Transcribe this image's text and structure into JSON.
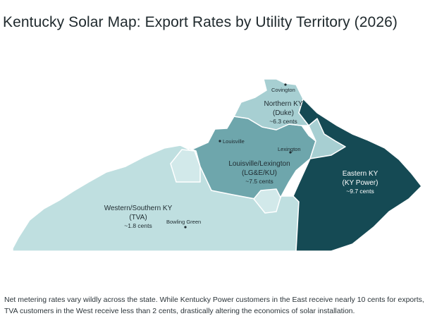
{
  "title": "Kentucky Solar Map: Export Rates by Utility Territory (2026)",
  "caption": "Net metering rates vary wildly across the state. While Kentucky Power customers in the East receive nearly 10 cents for exports, TVA customers in the West receive less than 2 cents, drastically altering the economics of solar installation.",
  "colors": {
    "western": "#bfdfe0",
    "louisville": "#6ea6ac",
    "northern": "#a7cfd2",
    "eastern": "#154a54",
    "light_patch": "#d2e9ea",
    "border": "#ffffff",
    "dark_text": "#1f2b30",
    "light_text": "#ffffff"
  },
  "regions": {
    "western": {
      "name": "Western/Southern KY",
      "utility": "(TVA)",
      "rate": "~1.8 cents"
    },
    "louisville": {
      "name": "Louisville/Lexington",
      "utility": "(LG&E/KU)",
      "rate": "~7.5 cents"
    },
    "northern": {
      "name": "Northern KY",
      "utility": "(Duke)",
      "rate": "~6.3 cents"
    },
    "eastern": {
      "name": "Eastern KY",
      "utility": "(KY Power)",
      "rate": "~9.7 cents"
    }
  },
  "cities": {
    "covington": "Covington",
    "louisville": "Louisville",
    "lexington": "Lexington",
    "bowling_green": "Bowling Green"
  }
}
